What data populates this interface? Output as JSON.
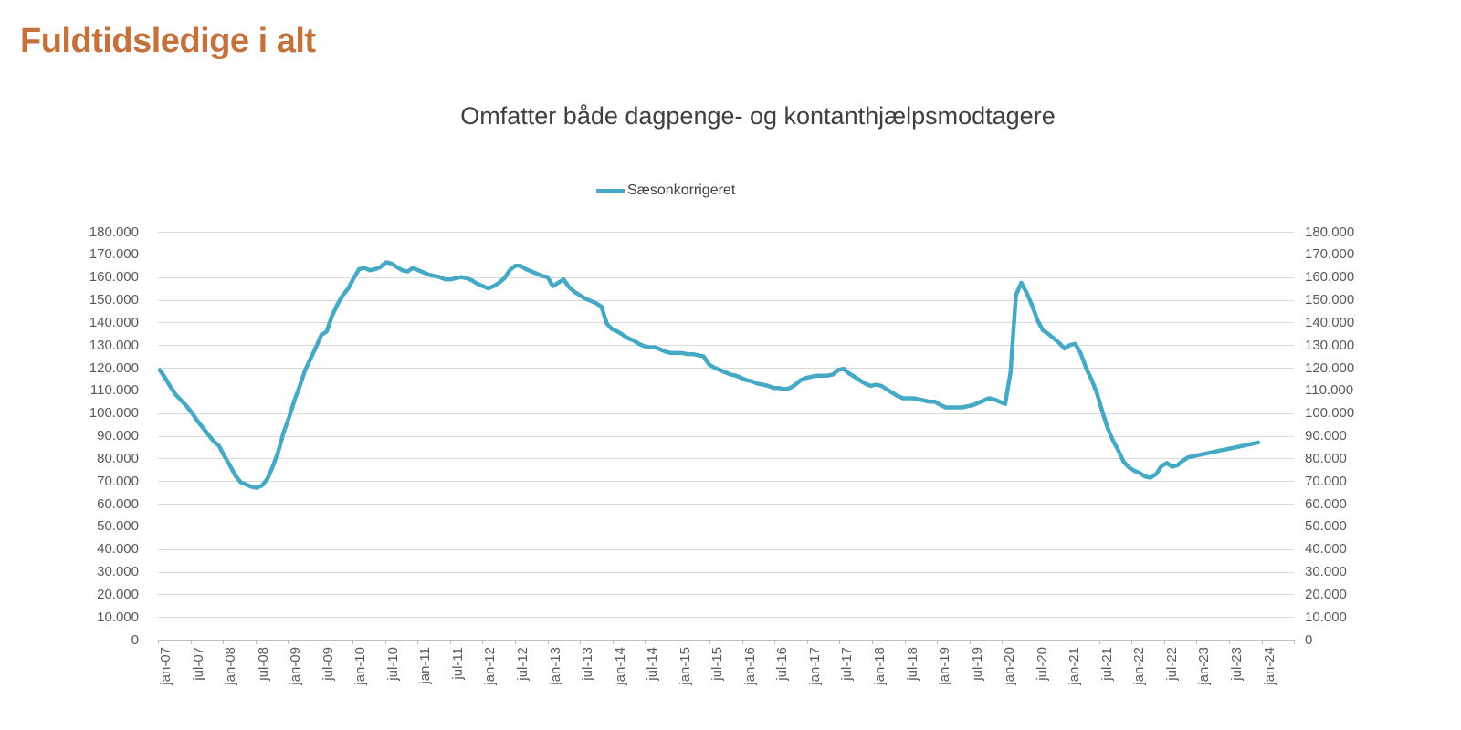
{
  "page": {
    "title": "Fuldtidsledige i alt"
  },
  "chart": {
    "subtitle": "Omfatter både dagpenge- og kontanthjælpsmodtagere",
    "legend": {
      "label": "Sæsonkorrigeret"
    },
    "colors": {
      "title": "#c4713b",
      "line": "#45a9c5",
      "gridline": "#d9d9d9",
      "axis_line": "#bfbfbf",
      "tick_label": "#595959",
      "subtitle_text": "#3f3f3f"
    }
  },
  "chart_data": {
    "type": "line",
    "title": "Omfatter både dagpenge- og kontanthjælpsmodtagere",
    "legend_position": "top-center",
    "grid": "horizontal",
    "dual_y_axis": true,
    "ylim": [
      0,
      180000
    ],
    "y_step": 10000,
    "y_tick_labels_top_to_bottom": [
      "180.000",
      "170.000",
      "160.000",
      "150.000",
      "140.000",
      "130.000",
      "120.000",
      "110.000",
      "100.000",
      "90.000",
      "80.000",
      "70.000",
      "60.000",
      "50.000",
      "40.000",
      "30.000",
      "20.000",
      "10.000",
      "0"
    ],
    "x_unit": "month",
    "x_start": "jan-07",
    "x_end": "jan-24",
    "x_tick_labels": [
      "jan-07",
      "jul-07",
      "jan-08",
      "jul-08",
      "jan-09",
      "jul-09",
      "jan-10",
      "jul-10",
      "jan-11",
      "jul-11",
      "jan-12",
      "jul-12",
      "jan-13",
      "jul-13",
      "jan-14",
      "jul-14",
      "jan-15",
      "jul-15",
      "jan-16",
      "jul-16",
      "jan-17",
      "jul-17",
      "jan-18",
      "jul-18",
      "jan-19",
      "jul-19",
      "jan-20",
      "jul-20",
      "jan-21",
      "jul-21",
      "jan-22",
      "jul-22",
      "jan-23",
      "jul-23",
      "jan-24"
    ],
    "series": [
      {
        "name": "Sæsonkorrigeret",
        "color": "#45a9c5",
        "values": [
          119000,
          115500,
          111500,
          108000,
          105500,
          103000,
          100000,
          96500,
          93500,
          90500,
          87500,
          85500,
          81000,
          77000,
          72500,
          69500,
          68500,
          67500,
          67000,
          68000,
          71000,
          76500,
          83000,
          91500,
          98000,
          105500,
          112000,
          119000,
          124000,
          129000,
          134500,
          136000,
          143000,
          148000,
          152000,
          155000,
          159500,
          163500,
          164000,
          163000,
          163500,
          164500,
          166500,
          166000,
          164500,
          163000,
          162500,
          164000,
          163000,
          162000,
          161000,
          160500,
          160000,
          159000,
          159000,
          159500,
          160000,
          159500,
          158500,
          157000,
          156000,
          155000,
          156000,
          157500,
          159500,
          163000,
          165000,
          165000,
          163500,
          162500,
          161500,
          160500,
          160000,
          156000,
          157500,
          159000,
          155500,
          153500,
          152000,
          150500,
          149500,
          148500,
          147000,
          139500,
          137000,
          136000,
          134500,
          133000,
          132000,
          130500,
          129500,
          129000,
          129000,
          128000,
          127000,
          126500,
          126500,
          126500,
          126000,
          126000,
          125500,
          125000,
          121500,
          120000,
          119000,
          118000,
          117000,
          116500,
          115500,
          114500,
          114000,
          113000,
          112500,
          112000,
          111000,
          111000,
          110500,
          111000,
          112500,
          114500,
          115500,
          116000,
          116500,
          116500,
          116500,
          117000,
          119000,
          119500,
          117500,
          116000,
          114500,
          113000,
          112000,
          112500,
          112000,
          110500,
          109000,
          107500,
          106500,
          106500,
          106500,
          106000,
          105500,
          105000,
          105000,
          103500,
          102500,
          102500,
          102500,
          102500,
          103000,
          103500,
          104500,
          105500,
          106500,
          106000,
          105000,
          104000,
          118000,
          152000,
          157500,
          153000,
          147500,
          141000,
          136500,
          135000,
          133000,
          131000,
          128500,
          130000,
          130500,
          126500,
          120000,
          115000,
          109000,
          101000,
          93500,
          88000,
          83500,
          78500,
          76000,
          74500,
          73500,
          72000,
          71500,
          73000,
          76500,
          78000,
          76300,
          77000,
          79000,
          80500,
          81000,
          81500,
          82000,
          82500,
          83000,
          83500,
          84000,
          84500,
          85000,
          85500,
          86000,
          86500,
          87000
        ]
      }
    ]
  }
}
